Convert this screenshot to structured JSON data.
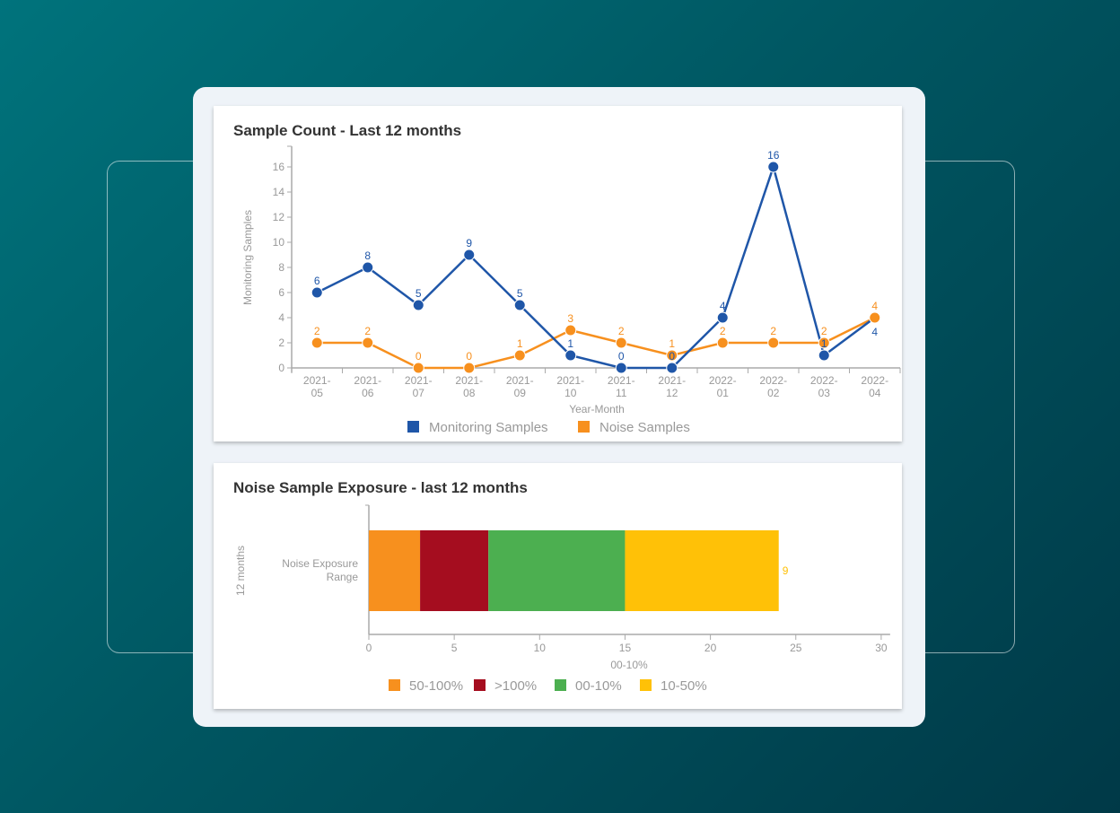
{
  "colors": {
    "monitoring": "#1f56a8",
    "noise": "#f7901e",
    "seg_50_100": "#f7901e",
    "seg_gt100": "#a50d1f",
    "seg_00_10": "#4caf50",
    "seg_10_50": "#ffc107"
  },
  "chart_data": [
    {
      "type": "line",
      "title": "Sample Count - Last 12 months",
      "xlabel": "Year-Month",
      "ylabel": "Monitoring Samples",
      "ylim": [
        0,
        17
      ],
      "yticks": [
        0,
        2,
        4,
        6,
        8,
        10,
        12,
        14,
        16
      ],
      "categories": [
        [
          "2021-",
          "05"
        ],
        [
          "2021-",
          "06"
        ],
        [
          "2021-",
          "07"
        ],
        [
          "2021-",
          "08"
        ],
        [
          "2021-",
          "09"
        ],
        [
          "2021-",
          "10"
        ],
        [
          "2021-",
          "11"
        ],
        [
          "2021-",
          "12"
        ],
        [
          "2022-",
          "01"
        ],
        [
          "2022-",
          "02"
        ],
        [
          "2022-",
          "03"
        ],
        [
          "2022-",
          "04"
        ]
      ],
      "series": [
        {
          "name": "Monitoring Samples",
          "values": [
            6,
            8,
            5,
            9,
            5,
            1,
            0,
            0,
            4,
            16,
            1,
            4
          ]
        },
        {
          "name": "Noise Samples",
          "values": [
            2,
            2,
            0,
            0,
            1,
            3,
            2,
            1,
            2,
            2,
            2,
            4
          ]
        }
      ],
      "legend": "bottom",
      "grid": false
    },
    {
      "type": "bar",
      "orientation": "horizontal-stacked",
      "title": "Noise Sample Exposure - last 12 months",
      "xlabel": "00-10%",
      "ylabel": "12 months",
      "categories": [
        "Noise Exposure Range"
      ],
      "xlim": [
        0,
        30
      ],
      "xticks": [
        0,
        5,
        10,
        15,
        20,
        25,
        30
      ],
      "series": [
        {
          "name": "50-100%",
          "values": [
            3
          ]
        },
        {
          "name": ">100%",
          "values": [
            4
          ]
        },
        {
          "name": "00-10%",
          "values": [
            8
          ]
        },
        {
          "name": "10-50%",
          "values": [
            9
          ]
        }
      ],
      "legend": "bottom",
      "grid": false
    }
  ]
}
